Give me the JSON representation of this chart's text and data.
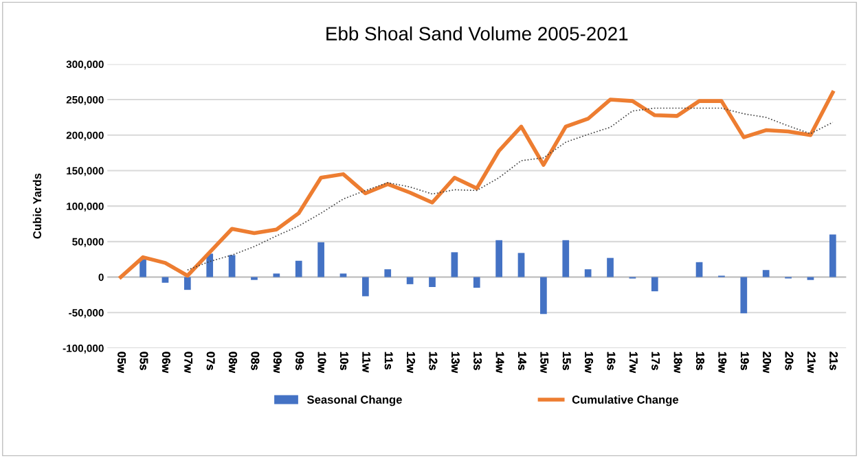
{
  "chart_data": {
    "type": "bar",
    "title": "Ebb Shoal Sand Volume 2005-2021",
    "ylabel": "Cubic Yards",
    "categories": [
      "05w",
      "05s",
      "06w",
      "07w",
      "07s",
      "08w",
      "08s",
      "09w",
      "09s",
      "10w",
      "10s",
      "11w",
      "11s",
      "12w",
      "12s",
      "13w",
      "13s",
      "14w",
      "14s",
      "15w",
      "15s",
      "16w",
      "16s",
      "17w",
      "17s",
      "18w",
      "18s",
      "19w",
      "19s",
      "20w",
      "20s",
      "21w",
      "21s"
    ],
    "series": [
      {
        "name": "Seasonal Change",
        "color": "#4472c4",
        "values": [
          0,
          25000,
          -8000,
          -18000,
          33000,
          31000,
          -4000,
          5000,
          23000,
          49000,
          5000,
          -27000,
          11000,
          -10000,
          -14000,
          35000,
          -15000,
          52000,
          34000,
          -52000,
          52000,
          11000,
          27000,
          -2000,
          -20000,
          0,
          21000,
          2000,
          -51000,
          10000,
          -2000,
          -4000,
          60000
        ]
      },
      {
        "name": "Cumulative Change",
        "type": "line",
        "color": "#ed7d31",
        "values": [
          0,
          28000,
          20000,
          2000,
          35000,
          68000,
          62000,
          67000,
          90000,
          140000,
          145000,
          118000,
          131000,
          119000,
          105000,
          140000,
          125000,
          178000,
          212000,
          158000,
          212000,
          223000,
          250000,
          248000,
          228000,
          227000,
          248000,
          248000,
          197000,
          207000,
          205000,
          200000,
          260000
        ]
      },
      {
        "type": "line",
        "color": "#404040",
        "line_style": "dotted",
        "values": [
          null,
          null,
          null,
          10000,
          22000,
          31000,
          43000,
          58000,
          72000,
          90000,
          110000,
          122000,
          133000,
          127000,
          117000,
          123000,
          122000,
          140000,
          164000,
          168000,
          190000,
          201000,
          211000,
          234000,
          238000,
          238000,
          238000,
          238000,
          230000,
          225000,
          213000,
          202000,
          218000
        ]
      }
    ],
    "ylim": [
      -100000,
      300000
    ],
    "yticks": [
      {
        "value": -100000,
        "label": "-100,000"
      },
      {
        "value": -50000,
        "label": "-50,000"
      },
      {
        "value": 0,
        "label": "0"
      },
      {
        "value": 50000,
        "label": "50,000"
      },
      {
        "value": 100000,
        "label": "100,000"
      },
      {
        "value": 150000,
        "label": "150,000"
      },
      {
        "value": 200000,
        "label": "200,000"
      },
      {
        "value": 250000,
        "label": "250,000"
      },
      {
        "value": 300000,
        "label": "300,000"
      }
    ],
    "grid": "y",
    "legend": "bottom"
  }
}
